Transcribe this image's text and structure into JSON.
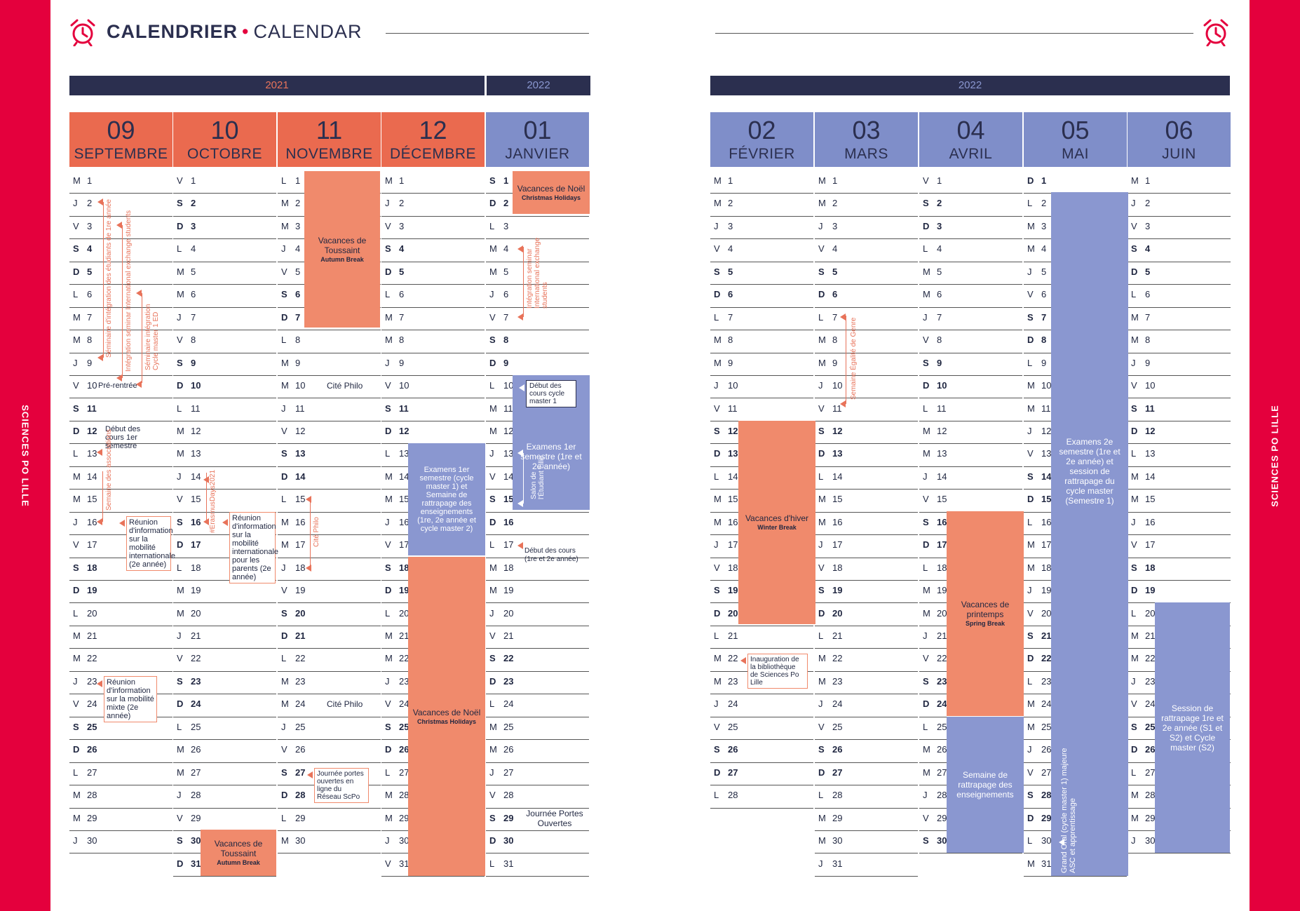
{
  "header": {
    "title_bold": "CALENDRIER",
    "bullet": "•",
    "title_light": "CALENDAR"
  },
  "side_brand": "SCIENCES PO LILLE",
  "icons": {
    "clock": "alarm-clock-icon"
  },
  "colors": {
    "red": "#e4003d",
    "navy": "#2b2f4f",
    "orange": "#f08a6c",
    "blue": "#8a97d0",
    "salmon": "#e8735a"
  },
  "years": {
    "left_2021": "2021",
    "left_2022": "2022",
    "right_2022": "2022"
  },
  "months": [
    {
      "num": "09",
      "name": "SEPTEMBRE"
    },
    {
      "num": "10",
      "name": "OCTOBRE"
    },
    {
      "num": "11",
      "name": "NOVEMBRE"
    },
    {
      "num": "12",
      "name": "DÉCEMBRE"
    },
    {
      "num": "01",
      "name": "JANVIER"
    },
    {
      "num": "02",
      "name": "FÉVRIER"
    },
    {
      "num": "03",
      "name": "MARS"
    },
    {
      "num": "04",
      "name": "AVRIL"
    },
    {
      "num": "05",
      "name": "MAI"
    },
    {
      "num": "06",
      "name": "JUIN"
    }
  ],
  "days": [
    [
      "M",
      "J",
      "V",
      "S",
      "D",
      "L",
      "M",
      "M",
      "J",
      "V",
      "S",
      "D",
      "L",
      "M",
      "M",
      "J",
      "V",
      "S",
      "D",
      "L",
      "M",
      "M",
      "J",
      "V",
      "S",
      "D",
      "L",
      "M",
      "M",
      "J"
    ],
    [
      "V",
      "S",
      "D",
      "L",
      "M",
      "M",
      "J",
      "V",
      "S",
      "D",
      "L",
      "M",
      "M",
      "J",
      "V",
      "S",
      "D",
      "L",
      "M",
      "M",
      "J",
      "V",
      "S",
      "D",
      "L",
      "M",
      "M",
      "J",
      "V",
      "S",
      "D"
    ],
    [
      "L",
      "M",
      "M",
      "J",
      "V",
      "S",
      "D",
      "L",
      "M",
      "M",
      "J",
      "V",
      "S",
      "D",
      "L",
      "M",
      "M",
      "J",
      "V",
      "S",
      "D",
      "L",
      "M",
      "M",
      "J",
      "V",
      "S",
      "D",
      "L",
      "M"
    ],
    [
      "M",
      "J",
      "V",
      "S",
      "D",
      "L",
      "M",
      "M",
      "J",
      "V",
      "S",
      "D",
      "L",
      "M",
      "M",
      "J",
      "V",
      "S",
      "D",
      "L",
      "M",
      "M",
      "J",
      "V",
      "S",
      "D",
      "L",
      "M",
      "M",
      "J",
      "V"
    ],
    [
      "S",
      "D",
      "L",
      "M",
      "M",
      "J",
      "V",
      "S",
      "D",
      "L",
      "M",
      "M",
      "J",
      "V",
      "S",
      "D",
      "L",
      "M",
      "M",
      "J",
      "V",
      "S",
      "D",
      "L",
      "M",
      "M",
      "J",
      "V",
      "S",
      "D",
      "L"
    ],
    [
      "M",
      "M",
      "J",
      "V",
      "S",
      "D",
      "L",
      "M",
      "M",
      "J",
      "V",
      "S",
      "D",
      "L",
      "M",
      "M",
      "J",
      "V",
      "S",
      "D",
      "L",
      "M",
      "M",
      "J",
      "V",
      "S",
      "D",
      "L"
    ],
    [
      "M",
      "M",
      "J",
      "V",
      "S",
      "D",
      "L",
      "M",
      "M",
      "J",
      "V",
      "S",
      "D",
      "L",
      "M",
      "M",
      "J",
      "V",
      "S",
      "D",
      "L",
      "M",
      "M",
      "J",
      "V",
      "S",
      "D",
      "L",
      "M",
      "M",
      "J"
    ],
    [
      "V",
      "S",
      "D",
      "L",
      "M",
      "M",
      "J",
      "V",
      "S",
      "D",
      "L",
      "M",
      "M",
      "J",
      "V",
      "S",
      "D",
      "L",
      "M",
      "M",
      "J",
      "V",
      "S",
      "D",
      "L",
      "M",
      "M",
      "J",
      "V",
      "S"
    ],
    [
      "D",
      "L",
      "M",
      "M",
      "J",
      "V",
      "S",
      "D",
      "L",
      "M",
      "M",
      "J",
      "V",
      "S",
      "D",
      "L",
      "M",
      "M",
      "J",
      "V",
      "S",
      "D",
      "L",
      "M",
      "M",
      "J",
      "V",
      "S",
      "D",
      "L",
      "M"
    ],
    [
      "M",
      "J",
      "V",
      "S",
      "D",
      "L",
      "M",
      "M",
      "J",
      "V",
      "S",
      "D",
      "L",
      "M",
      "M",
      "J",
      "V",
      "S",
      "D",
      "L",
      "M",
      "M",
      "J",
      "V",
      "S",
      "D",
      "L",
      "M",
      "M",
      "J"
    ]
  ],
  "inline_events": {
    "sep10": "Pré-rentrée",
    "nov10": "Cité Philo",
    "nov24": "Cité Philo",
    "jan29": "Journée Portes Ouvertes"
  },
  "blocks": {
    "toussaint_fr": "Vacances de Toussaint",
    "toussaint_en": "Autumn Break",
    "noel_fr": "Vacances de Noël",
    "noel_en": "Christmas Holidays",
    "exam_dec": "Examens 1er semestre (cycle master 1) et Semaine de rattrapage des enseignements (1re, 2e année et cycle master 2)",
    "exam_jan": "Examens 1er semestre (1re et 2e année)",
    "hiver_fr": "Vacances d'hiver",
    "hiver_en": "Winter Break",
    "printemps_fr": "Vacances de printemps",
    "printemps_en": "Spring Break",
    "rattrapage_avr": "Semaine de rattrapage des enseignements",
    "exam_mai": "Examens 2e semestre (1re et 2e année) et session de rattrapage du cycle master (Semestre 1)",
    "session_juin": "Session de rattrapage 1re et 2e année (S1 et S2) et Cycle master (S2)",
    "grand_oral": "Grand Oral (cycle master 1) majeure ASC et apprentissage"
  },
  "notes": {
    "debut_cours_1": "Début des cours 1er semestre",
    "semaine_assoc": "Semaine des associations",
    "reunion_mob": "Réunion d'information sur la mobilité internationale (2e année)",
    "reunion_mixte": "Réunion d'information sur la mobilité mixte (2e année)",
    "reunion_parents": "Réunion d'information sur la mobilité internationale pour les parents (2e année)",
    "erasmus": "#ErasmusDays2021",
    "cite_philo_v": "Cité Philo",
    "jpo_ligne": "Journée portes ouvertes en ligne du Réseau ScPo",
    "sem_integ_1": "Séminaire d'intégration des étudiants de 1re année",
    "integ_seminar": "Intégration seminar International exchange students",
    "sem_integ_master": "Séminaire intégration Cycle master 1 ED",
    "integ_jan": "Intégration seminar International exchange students",
    "debut_master": "Début des cours cycle master 1",
    "salon": "Salon de l'Étudiant Lille",
    "debut_cours_2": "Début des cours (1re et 2e année)",
    "semaine_genre": "Semaine Égalité de Genre",
    "inauguration": "Inauguration de la bibliothèque de Sciences Po Lille"
  }
}
